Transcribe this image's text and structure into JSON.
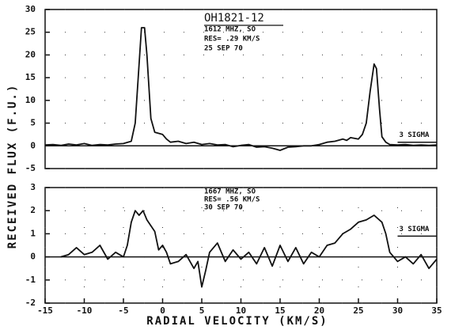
{
  "chart_data": [
    {
      "type": "line",
      "ylabel": "RECEIVED FLUX (F.U.)",
      "annotations": [
        "OH1821-12",
        "1612 MHZ, SO",
        "RES= .29 KM/S",
        "25 SEP 70"
      ],
      "x": [
        -15,
        -14,
        -13,
        -12,
        -11,
        -10,
        -9,
        -8,
        -7,
        -6,
        -5,
        -4,
        -3.5,
        -3,
        -2.7,
        -2.3,
        -2,
        -1.5,
        -1,
        0,
        0.5,
        1,
        2,
        3,
        4,
        5,
        6,
        7,
        8,
        9,
        10,
        11,
        12,
        13,
        14,
        15,
        16,
        17,
        18,
        19,
        20,
        21,
        22,
        23,
        23.5,
        24,
        25,
        25.5,
        26,
        26.5,
        27,
        27.3,
        27.7,
        28,
        28.5,
        29,
        30,
        31,
        32,
        33,
        34,
        35
      ],
      "values": [
        0.2,
        0.3,
        0.1,
        0.4,
        0.2,
        0.5,
        0.1,
        0.3,
        0.2,
        0.4,
        0.5,
        1,
        5,
        18,
        26,
        26,
        20,
        6,
        3,
        2.5,
        1.5,
        0.8,
        1,
        0.5,
        0.8,
        0.3,
        0.5,
        0.2,
        0.3,
        -0.2,
        0.1,
        0.3,
        -0.3,
        -0.2,
        -0.5,
        -1,
        -0.3,
        -0.2,
        0,
        0,
        0.3,
        0.8,
        1,
        1.5,
        1.2,
        1.8,
        1.5,
        2.5,
        5,
        12,
        18,
        17,
        8,
        2,
        0.8,
        0.3,
        0.2,
        0.3,
        0.1,
        0.2,
        0.1,
        0.2
      ],
      "color": "#111",
      "xlim": [
        -15,
        35
      ],
      "ylim": [
        -5,
        30
      ],
      "yticks": [
        -5,
        0,
        5,
        10,
        15,
        20,
        25,
        30
      ],
      "grid": true,
      "sigma": {
        "label": "3 SIGMA",
        "value": 0.8
      }
    },
    {
      "type": "line",
      "xlabel": "RADIAL VELOCITY (KM/S)",
      "annotations": [
        "1667 MHZ, SO",
        "RES= .56 KM/S",
        "30 SEP 70"
      ],
      "x": [
        -13,
        -12,
        -11,
        -10,
        -9,
        -8,
        -7,
        -6,
        -5,
        -4.5,
        -4,
        -3.5,
        -3,
        -2.5,
        -2,
        -1,
        -0.5,
        0,
        0.5,
        1,
        2,
        3,
        4,
        4.5,
        5,
        5.5,
        6,
        7,
        8,
        9,
        10,
        11,
        12,
        13,
        14,
        15,
        16,
        17,
        18,
        19,
        20,
        21,
        22,
        23,
        24,
        25,
        26,
        27,
        28,
        28.5,
        29,
        30,
        31,
        32,
        33,
        34,
        35
      ],
      "values": [
        0,
        0.1,
        0.4,
        0.1,
        0.2,
        0.5,
        -0.1,
        0.2,
        0,
        0.5,
        1.5,
        2,
        1.8,
        2,
        1.6,
        1.1,
        0.3,
        0.5,
        0.2,
        -0.3,
        -0.2,
        0.1,
        -0.5,
        -0.2,
        -1.3,
        -0.6,
        0.2,
        0.6,
        -0.2,
        0.3,
        -0.1,
        0.2,
        -0.3,
        0.4,
        -0.4,
        0.5,
        -0.2,
        0.4,
        -0.3,
        0.2,
        0,
        0.5,
        0.6,
        1,
        1.2,
        1.5,
        1.6,
        1.8,
        1.5,
        1,
        0.2,
        -0.2,
        0,
        -0.3,
        0.1,
        -0.5,
        -0.1
      ],
      "color": "#111",
      "xlim": [
        -15,
        35
      ],
      "xticks": [
        -15,
        -10,
        -5,
        0,
        5,
        10,
        15,
        20,
        25,
        30,
        35
      ],
      "ylim": [
        -2,
        3
      ],
      "yticks": [
        -2,
        -1,
        0,
        1,
        2,
        3
      ],
      "grid": true,
      "sigma": {
        "label": "3 SIGMA",
        "value": 0.9
      }
    }
  ]
}
